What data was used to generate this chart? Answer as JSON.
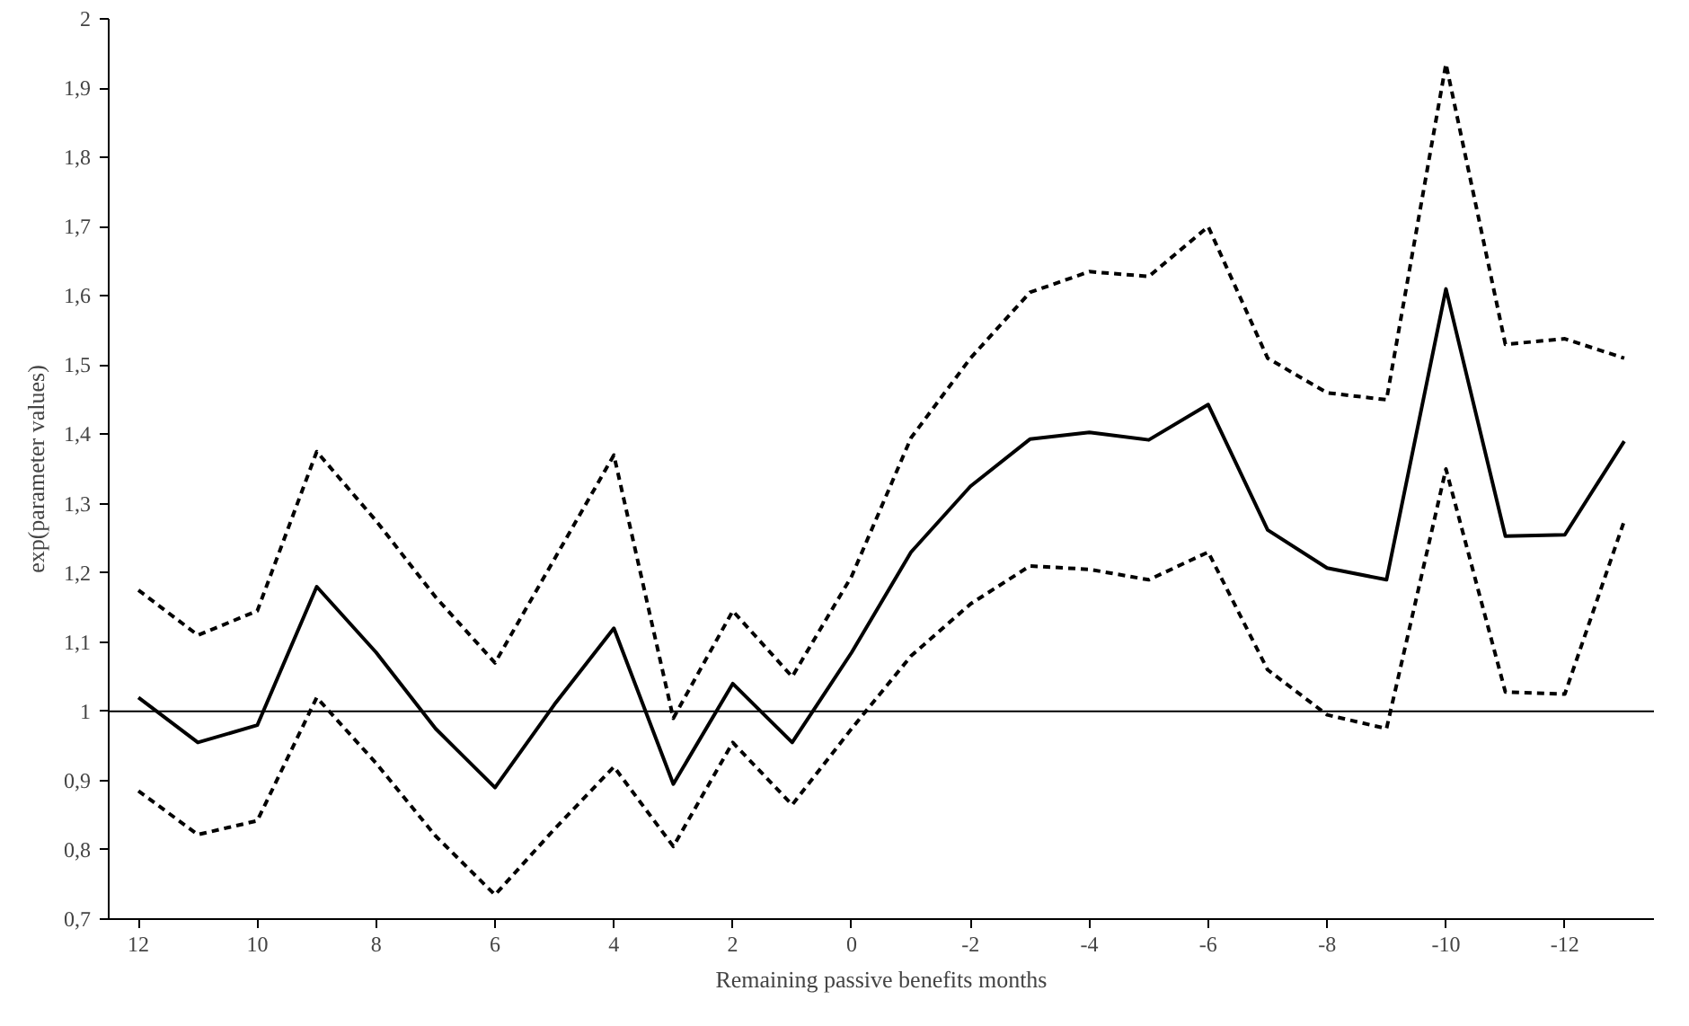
{
  "chart_data": {
    "type": "line",
    "xlabel": "Remaining passive benefits months",
    "ylabel": "exp(parameter values)",
    "categories": [
      "12",
      null,
      "10",
      null,
      "8",
      null,
      "6",
      null,
      "4",
      null,
      "2",
      null,
      "0",
      null,
      "-2",
      null,
      "-4",
      null,
      "-6",
      null,
      "-8",
      null,
      "-10",
      null,
      "-12",
      null
    ],
    "series": [
      {
        "color": "#000000",
        "line_style": "solid",
        "values": [
          1.02,
          0.955,
          0.98,
          1.18,
          1.085,
          0.975,
          0.89,
          1.01,
          1.12,
          0.895,
          1.04,
          0.955,
          1.085,
          1.23,
          1.325,
          1.393,
          1.403,
          1.392,
          1.443,
          1.262,
          1.207,
          1.19,
          1.61,
          1.253,
          1.255,
          1.39
        ]
      },
      {
        "color": "#000000",
        "line_style": "dashed",
        "values": [
          1.175,
          1.11,
          1.145,
          1.375,
          1.275,
          1.165,
          1.07,
          1.22,
          1.37,
          0.99,
          1.145,
          1.05,
          1.195,
          1.395,
          1.51,
          1.605,
          1.635,
          1.628,
          1.7,
          1.51,
          1.46,
          1.45,
          1.935,
          1.53,
          1.538,
          1.51
        ]
      },
      {
        "color": "#000000",
        "line_style": "dashed",
        "values": [
          0.885,
          0.822,
          0.842,
          1.02,
          0.925,
          0.82,
          0.735,
          0.83,
          0.92,
          0.805,
          0.955,
          0.865,
          0.975,
          1.08,
          1.155,
          1.21,
          1.205,
          1.19,
          1.23,
          1.06,
          0.995,
          0.975,
          1.35,
          1.028,
          1.025,
          1.275
        ]
      }
    ],
    "ylim": [
      0.7,
      2.0
    ],
    "yticks": [
      {
        "value": 0.7,
        "label": "0,7"
      },
      {
        "value": 0.8,
        "label": "0,8"
      },
      {
        "value": 0.9,
        "label": "0,9"
      },
      {
        "value": 1.0,
        "label": "1"
      },
      {
        "value": 1.1,
        "label": "1,1"
      },
      {
        "value": 1.2,
        "label": "1,2"
      },
      {
        "value": 1.3,
        "label": "1,3"
      },
      {
        "value": 1.4,
        "label": "1,4"
      },
      {
        "value": 1.5,
        "label": "1,5"
      },
      {
        "value": 1.6,
        "label": "1,6"
      },
      {
        "value": 1.7,
        "label": "1,7"
      },
      {
        "value": 1.8,
        "label": "1,8"
      },
      {
        "value": 1.9,
        "label": "1,9"
      },
      {
        "value": 2.0,
        "label": "2"
      }
    ],
    "ref_lines": [
      {
        "axis": "y",
        "value": 1.0,
        "color": "#000000",
        "line_style": "solid"
      }
    ],
    "grid": false,
    "marker": "none"
  }
}
